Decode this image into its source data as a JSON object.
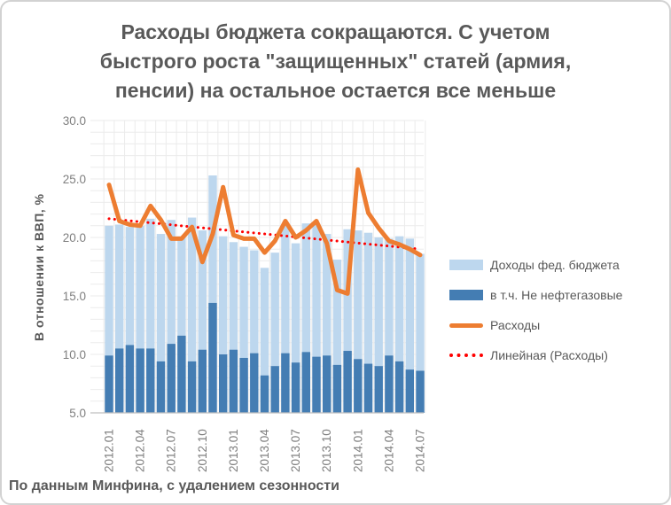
{
  "title": "Расходы бюджета сокращаются. С учетом быстрого роста \"защищенных\" статей (армия, пенсии) на остальное остается все меньше",
  "footer": "По данным Минфина, с удалением сезонности",
  "y_axis": {
    "title": "В отношении к ВВП, %",
    "min": 5,
    "max": 30,
    "major_step": 5,
    "minor_step": 1,
    "tick_labels": [
      "30.0",
      "25.0",
      "20.0",
      "15.0",
      "10.0",
      "5.0"
    ]
  },
  "x_axis": {
    "tick_labels": [
      "2012.01",
      "2012.04",
      "2012.07",
      "2012.10",
      "2013.01",
      "2013.04",
      "2013.07",
      "2013.10",
      "2014.01",
      "2014.04",
      "2014.07"
    ],
    "tick_every": 3
  },
  "legend": [
    {
      "label": "Доходы фед. бюджета",
      "swatch": "bar",
      "color": "#BDD7EE"
    },
    {
      "label": "в т.ч. Не нефтегазовые",
      "swatch": "bar",
      "color": "#447DB3"
    },
    {
      "label": "Расходы",
      "swatch": "line",
      "color": "#ED7D31"
    },
    {
      "label": "Линейная (Расходы)",
      "swatch": "dot",
      "color": "#FF0000"
    }
  ],
  "colors": {
    "gridline": "#EBEBEB",
    "axis_line": "#BFBFBF",
    "tick_text": "#7F7F7F",
    "title_text": "#595959",
    "revenue_bar": "#BDD7EE",
    "nonoil_bar": "#447DB3",
    "expenses_line": "#ED7D31",
    "trend_line": "#FF0000"
  },
  "chart_data": {
    "type": "bar+line combo",
    "ylabel": "В отношении к ВВП, %",
    "ylim": [
      5,
      30
    ],
    "grid": "horizontal every 1, vertical per category",
    "legend_position": "right",
    "x": [
      "2012.01",
      "2012.02",
      "2012.03",
      "2012.04",
      "2012.05",
      "2012.06",
      "2012.07",
      "2012.08",
      "2012.09",
      "2012.10",
      "2012.11",
      "2012.12",
      "2013.01",
      "2013.02",
      "2013.03",
      "2013.04",
      "2013.05",
      "2013.06",
      "2013.07",
      "2013.08",
      "2013.09",
      "2013.10",
      "2013.11",
      "2013.12",
      "2014.01",
      "2014.02",
      "2014.03",
      "2014.04",
      "2014.05",
      "2014.06",
      "2014.07"
    ],
    "series": [
      {
        "name": "Доходы фед. бюджета",
        "type": "bar",
        "color": "#BDD7EE",
        "values": [
          21.0,
          21.1,
          20.9,
          21.0,
          21.6,
          20.3,
          21.5,
          20.1,
          21.7,
          20.6,
          25.3,
          20.1,
          19.6,
          19.2,
          18.9,
          17.4,
          18.7,
          21.1,
          19.5,
          21.2,
          21.1,
          20.3,
          18.1,
          20.7,
          20.6,
          20.4,
          20.0,
          19.9,
          20.1,
          19.9,
          18.6
        ]
      },
      {
        "name": "в т.ч. Не нефтегазовые",
        "type": "bar",
        "color": "#447DB3",
        "values": [
          9.9,
          10.5,
          10.8,
          10.5,
          10.5,
          9.4,
          10.9,
          11.6,
          9.4,
          10.4,
          14.4,
          10.0,
          10.4,
          9.7,
          10.1,
          8.2,
          9.0,
          10.1,
          9.3,
          10.2,
          9.8,
          9.9,
          9.1,
          10.3,
          9.6,
          9.2,
          9.0,
          9.9,
          9.4,
          8.7,
          8.6
        ]
      },
      {
        "name": "Расходы",
        "type": "line",
        "color": "#ED7D31",
        "values": [
          24.5,
          21.4,
          21.1,
          21.0,
          22.7,
          21.5,
          19.9,
          19.9,
          20.9,
          17.9,
          20.3,
          24.3,
          20.2,
          19.9,
          19.9,
          18.7,
          19.7,
          21.4,
          20.0,
          20.6,
          21.4,
          19.5,
          15.5,
          15.2,
          25.8,
          22.1,
          20.8,
          19.7,
          19.4,
          19.0,
          18.5
        ]
      },
      {
        "name": "Линейная (Расходы)",
        "type": "trend",
        "color": "#FF0000",
        "dashed": true,
        "trend": {
          "start": 21.6,
          "end": 19.0
        }
      }
    ]
  }
}
